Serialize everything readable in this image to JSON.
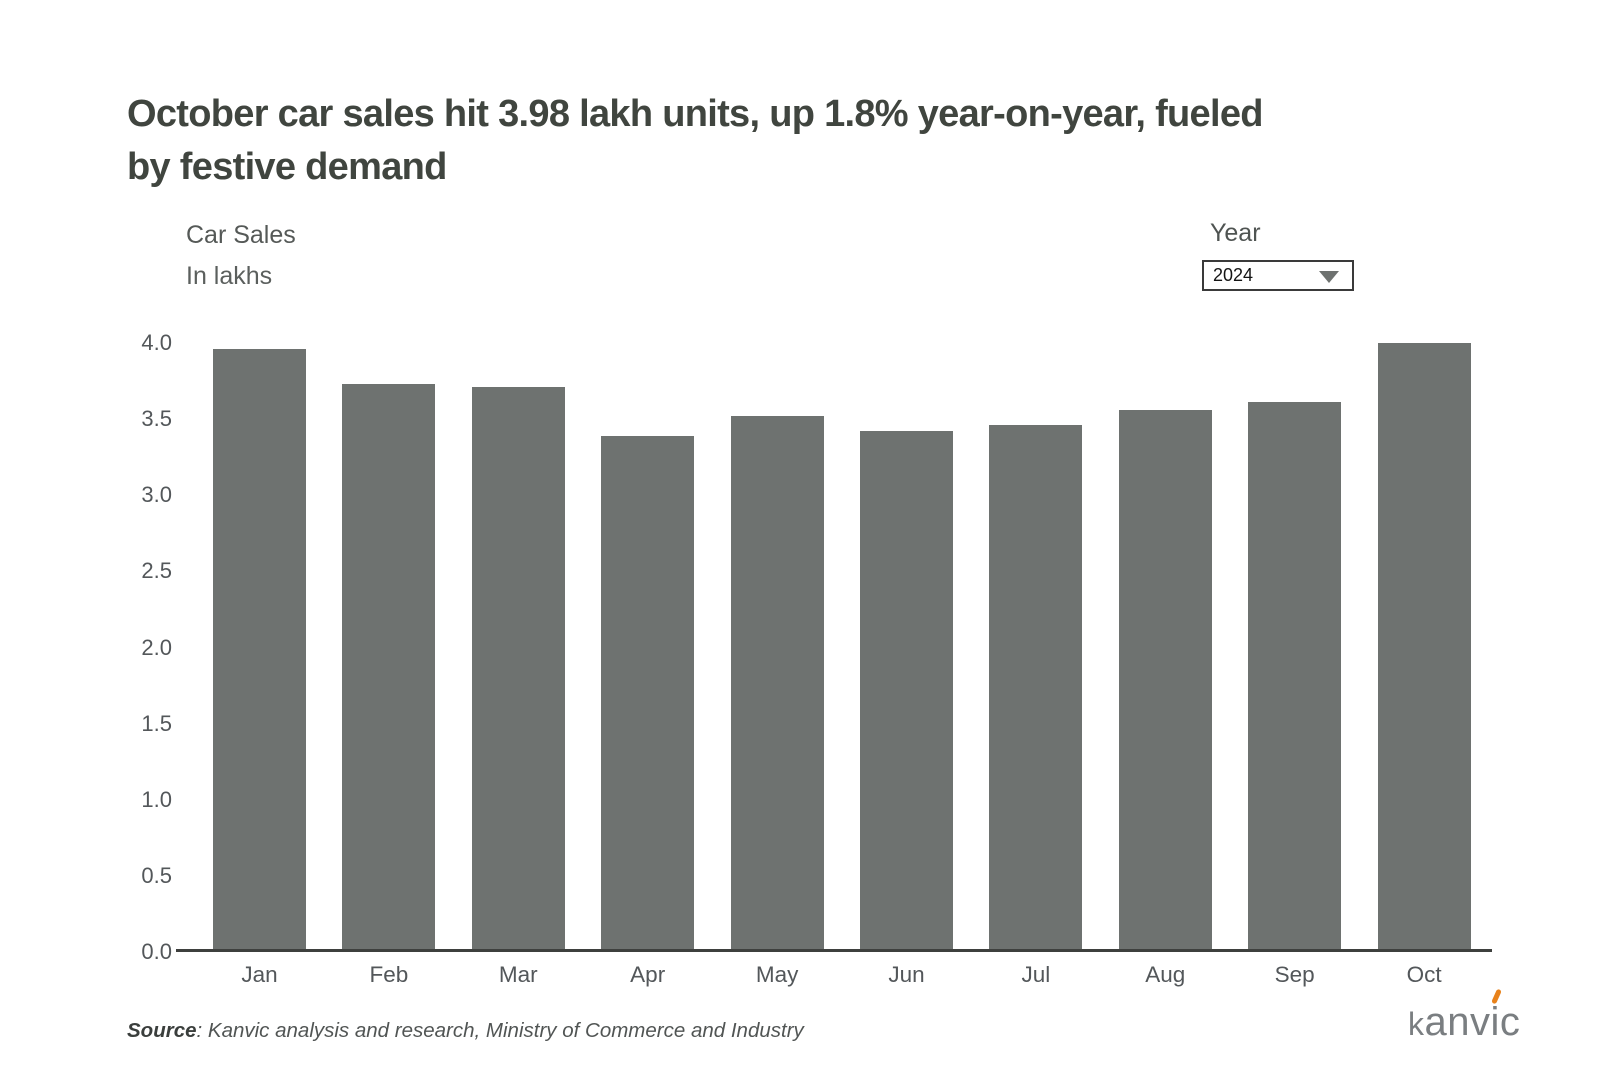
{
  "page": {
    "title": "October car sales hit 3.98 lakh units, up 1.8% year-on-year, fueled\nby festive demand"
  },
  "controls": {
    "year_label": "Year",
    "year_value": "2024",
    "dropdown_icon": "triangle-down"
  },
  "chart_data": {
    "type": "bar",
    "title": "Car Sales",
    "units": "In lakhs",
    "categories": [
      "Jan",
      "Feb",
      "Mar",
      "Apr",
      "May",
      "Jun",
      "Jul",
      "Aug",
      "Sep",
      "Oct"
    ],
    "values": [
      3.94,
      3.71,
      3.69,
      3.37,
      3.5,
      3.4,
      3.44,
      3.54,
      3.59,
      3.98
    ],
    "ylim": [
      0.0,
      4.0
    ],
    "yticks": [
      0.0,
      0.5,
      1.0,
      1.5,
      2.0,
      2.5,
      3.0,
      3.5,
      4.0
    ],
    "ytick_labels": [
      "0.0",
      "0.5",
      "1.0",
      "1.5",
      "2.0",
      "2.5",
      "3.0",
      "3.5",
      "4.0"
    ],
    "bar_color": "#6e7270",
    "grid": false,
    "legend": false
  },
  "source": {
    "label": "Source",
    "text": ": Kanvic analysis and research, Ministry of Commerce and Industry"
  },
  "logo": {
    "k": "k",
    "anv": "anv",
    "i": "i",
    "c": "c",
    "accent_color": "#e8821b"
  }
}
